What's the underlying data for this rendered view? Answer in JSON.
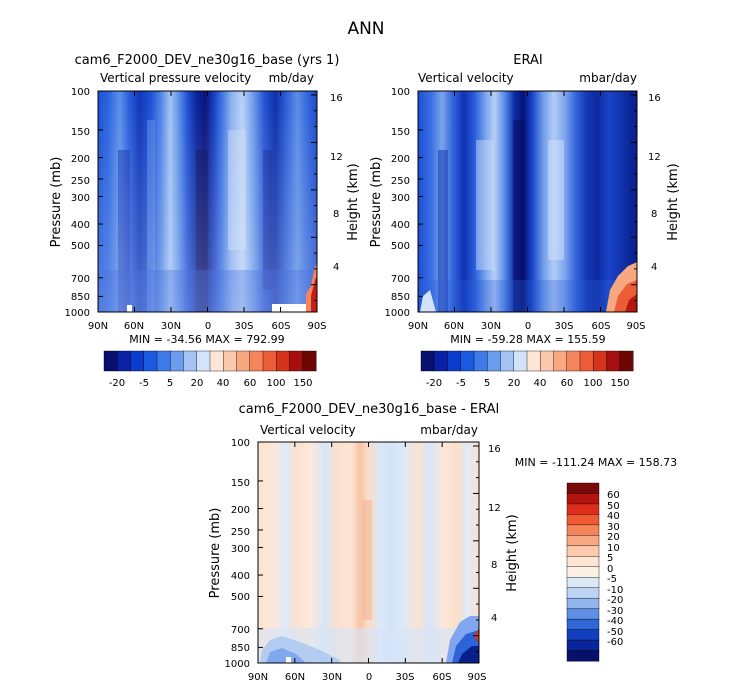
{
  "figure_title": "ANN",
  "chart_data": [
    {
      "type": "heatmap",
      "title": "cam6_F2000_DEV_ne30g16_base (yrs 1)",
      "left_subtitle": "Vertical pressure velocity",
      "right_subtitle": "mb/day",
      "ylabel": "Pressure (mb)",
      "ylabel_right": "Height (km)",
      "x_ticks": [
        "90N",
        "60N",
        "30N",
        "0",
        "30S",
        "60S",
        "90S"
      ],
      "y_ticks": [
        "100",
        "150",
        "200",
        "250",
        "300",
        "400",
        "500",
        "700",
        "850",
        "1000"
      ],
      "y_ticks_right": [
        "16",
        "12",
        "8",
        "4"
      ],
      "ylim": [
        1000,
        100
      ],
      "stats": "MIN = -34.56   MAX = 792.99",
      "colorbar": {
        "orientation": "horizontal",
        "labels": [
          "-20",
          "-5",
          "5",
          "20",
          "40",
          "60",
          "100",
          "150"
        ],
        "colors": [
          "#08106e",
          "#0a22a8",
          "#0c3ccc",
          "#1a5ae0",
          "#3d7ae8",
          "#6a9cf0",
          "#a3c3f5",
          "#d3e3fa",
          "#fde6d6",
          "#fbcaad",
          "#f8a880",
          "#f5845a",
          "#ec5c36",
          "#d5331c",
          "#a50f0d",
          "#6e0606"
        ]
      }
    },
    {
      "type": "heatmap",
      "title": "ERAI",
      "left_subtitle": "Vertical velocity",
      "right_subtitle": "mbar/day",
      "ylabel": "Pressure (mb)",
      "ylabel_right": "Height (km)",
      "x_ticks": [
        "90N",
        "60N",
        "30N",
        "0",
        "30S",
        "60S",
        "90S"
      ],
      "y_ticks": [
        "100",
        "150",
        "200",
        "250",
        "300",
        "400",
        "500",
        "700",
        "850",
        "1000"
      ],
      "y_ticks_right": [
        "16",
        "12",
        "8",
        "4"
      ],
      "ylim": [
        1000,
        100
      ],
      "stats": "MIN = -59.28   MAX = 155.59",
      "colorbar": {
        "orientation": "horizontal",
        "labels": [
          "-20",
          "-5",
          "5",
          "20",
          "40",
          "60",
          "100",
          "150"
        ],
        "colors": [
          "#08106e",
          "#0a22a8",
          "#0c3ccc",
          "#1a5ae0",
          "#3d7ae8",
          "#6a9cf0",
          "#a3c3f5",
          "#d3e3fa",
          "#fde6d6",
          "#fbcaad",
          "#f8a880",
          "#f5845a",
          "#ec5c36",
          "#d5331c",
          "#a50f0d",
          "#6e0606"
        ]
      }
    },
    {
      "type": "heatmap",
      "title": "cam6_F2000_DEV_ne30g16_base - ERAI",
      "left_subtitle": "Vertical velocity",
      "right_subtitle": "mbar/day",
      "ylabel": "Pressure (mb)",
      "ylabel_right": "Height (km)",
      "x_ticks": [
        "90N",
        "60N",
        "30N",
        "0",
        "30S",
        "60S",
        "90S"
      ],
      "y_ticks": [
        "100",
        "150",
        "200",
        "250",
        "300",
        "400",
        "500",
        "700",
        "850",
        "1000"
      ],
      "y_ticks_right": [
        "16",
        "12",
        "8",
        "4"
      ],
      "ylim": [
        1000,
        100
      ],
      "stats": "MIN = -111.24   MAX = 158.73",
      "colorbar": {
        "orientation": "vertical",
        "labels": [
          "60",
          "50",
          "40",
          "30",
          "20",
          "10",
          "5",
          "0",
          "-5",
          "-10",
          "-20",
          "-30",
          "-40",
          "-50",
          "-60"
        ],
        "colors": [
          "#7a0a0a",
          "#b3140f",
          "#dd2e1b",
          "#ef5a32",
          "#f6845a",
          "#f9a884",
          "#fbcaaf",
          "#fde5d2",
          "#fdf0e4",
          "#dbe8f8",
          "#bcd3f4",
          "#92b5ee",
          "#5f8fe4",
          "#2f67d6",
          "#123fc0",
          "#0a249a",
          "#06106b"
        ]
      }
    }
  ]
}
